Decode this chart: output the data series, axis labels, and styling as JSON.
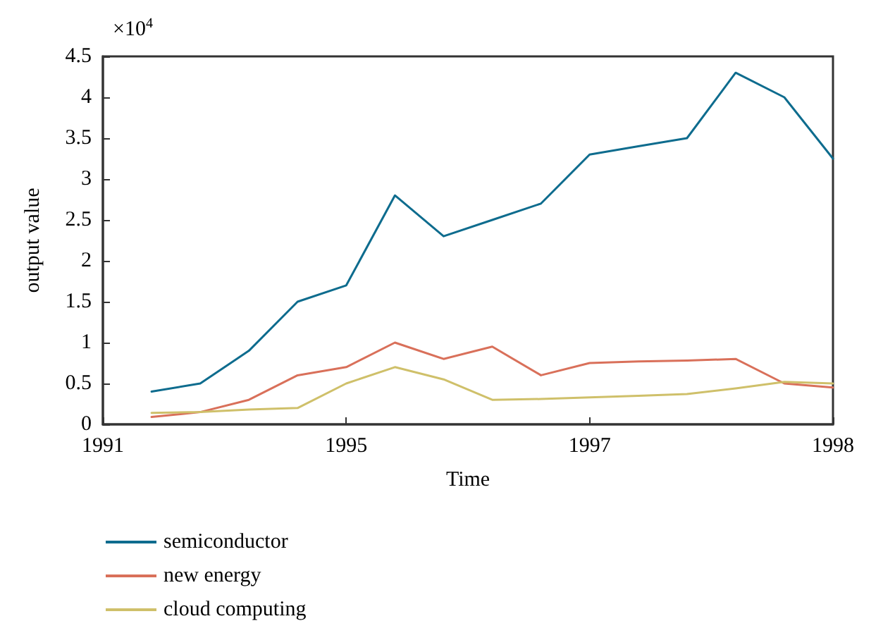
{
  "chart_data": {
    "type": "line",
    "xlabel": "Time",
    "ylabel": "output value",
    "annotations": [
      "×10$^{4}$"
    ],
    "categories": [
      "1991",
      null,
      null,
      null,
      null,
      "1995",
      null,
      null,
      null,
      null,
      "1997",
      null,
      null,
      null,
      null,
      "1998"
    ],
    "ylim": [
      0,
      4.5
    ],
    "yticks": [
      0,
      0.5,
      1,
      1.5,
      2,
      2.5,
      3,
      3.5,
      4,
      4.5
    ],
    "grid": false,
    "legend": "bottom left",
    "marker": "none",
    "line_style": "solid",
    "series": [
      {
        "name": "semiconductor",
        "color": "#0e6c8e",
        "values": [
          null,
          0.4,
          0.5,
          0.9,
          1.5,
          1.7,
          2.8,
          2.3,
          2.5,
          2.7,
          3.3,
          3.4,
          3.5,
          4.3,
          4.0,
          3.25
        ]
      },
      {
        "name": "new energy",
        "color": "#d9705a",
        "values": [
          null,
          0.09,
          0.15,
          0.3,
          0.6,
          0.7,
          1.0,
          0.8,
          0.95,
          0.6,
          0.75,
          0.77,
          0.78,
          0.8,
          0.5,
          0.45
        ]
      },
      {
        "name": "cloud computing",
        "color": "#cfc06a",
        "values": [
          null,
          0.14,
          0.15,
          0.18,
          0.2,
          0.5,
          0.7,
          0.55,
          0.3,
          0.31,
          0.33,
          0.35,
          0.37,
          0.44,
          0.52,
          0.5
        ]
      }
    ]
  }
}
